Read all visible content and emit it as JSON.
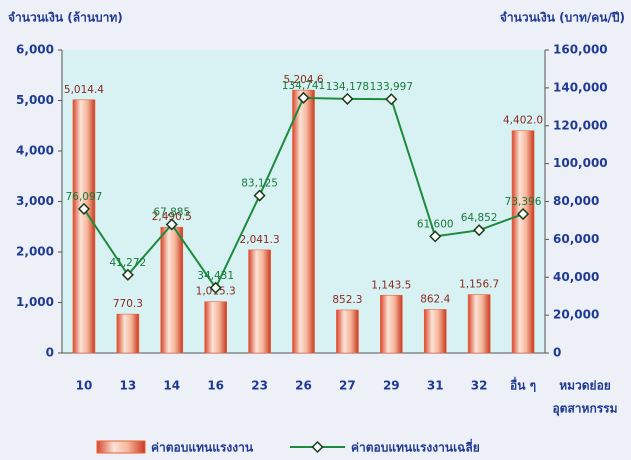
{
  "chart_data": {
    "type": "bar",
    "ylabel": "จำนวนเงิน (ล้านบาท)",
    "y2label": "จำนวนเงิน (บาท/คน/ปี)",
    "xlabel": [
      "หมวดย่อย",
      "อุตสาหกรรม"
    ],
    "categories": [
      "10",
      "13",
      "14",
      "16",
      "23",
      "26",
      "27",
      "29",
      "31",
      "32",
      "อื่น ๆ"
    ],
    "series": [
      {
        "name": "ค่าตอบแทนแรงงาน",
        "type": "bar",
        "color": "#e8603a",
        "values": [
          5014.4,
          770.3,
          2490.5,
          1015.3,
          2041.3,
          5204.6,
          852.3,
          1143.5,
          862.4,
          1156.7,
          4402.0
        ],
        "value_labels": [
          "5,014.4",
          "770.3",
          "2,490.5",
          "1,015.3",
          "2,041.3",
          "5,204.6",
          "852.3",
          "1,143.5",
          "862.4",
          "1,156.7",
          "4,402.0"
        ]
      },
      {
        "name": "ค่าตอบแทนแรงงานเฉลี่ย",
        "type": "line",
        "axis": "y2",
        "color": "#1e8a3e",
        "values": [
          76097,
          41272,
          67885,
          34431,
          83125,
          134741,
          134178,
          133997,
          61600,
          64852,
          73396
        ],
        "value_labels": [
          "76,097",
          "41,272",
          "67,885",
          "34,431",
          "83,125",
          "134,741",
          "134,178",
          "133,997",
          "61,600",
          "64,852",
          "73,396"
        ]
      }
    ],
    "ylim": [
      0,
      6000
    ],
    "yticks": [
      0,
      {
        "value": 1000,
        "label": "1,000"
      },
      {
        "value": 2000,
        "label": "2,000"
      },
      {
        "value": 3000,
        "label": "3,000"
      },
      {
        "value": 4000,
        "label": "4,000"
      },
      {
        "value": 5000,
        "label": "5,000"
      },
      {
        "value": 6000,
        "label": "6,000"
      }
    ],
    "y2lim": [
      0,
      160000
    ],
    "y2ticks": [
      0,
      {
        "value": 20000,
        "label": "20,000"
      },
      {
        "value": 40000,
        "label": "40,000"
      },
      {
        "value": 60000,
        "label": "60,000"
      },
      {
        "value": 80000,
        "label": "80,000"
      },
      {
        "value": 100000,
        "label": "100,000"
      },
      {
        "value": 120000,
        "label": "120,000"
      },
      {
        "value": 140000,
        "label": "140,000"
      },
      {
        "value": 160000,
        "label": "160,000"
      }
    ]
  }
}
